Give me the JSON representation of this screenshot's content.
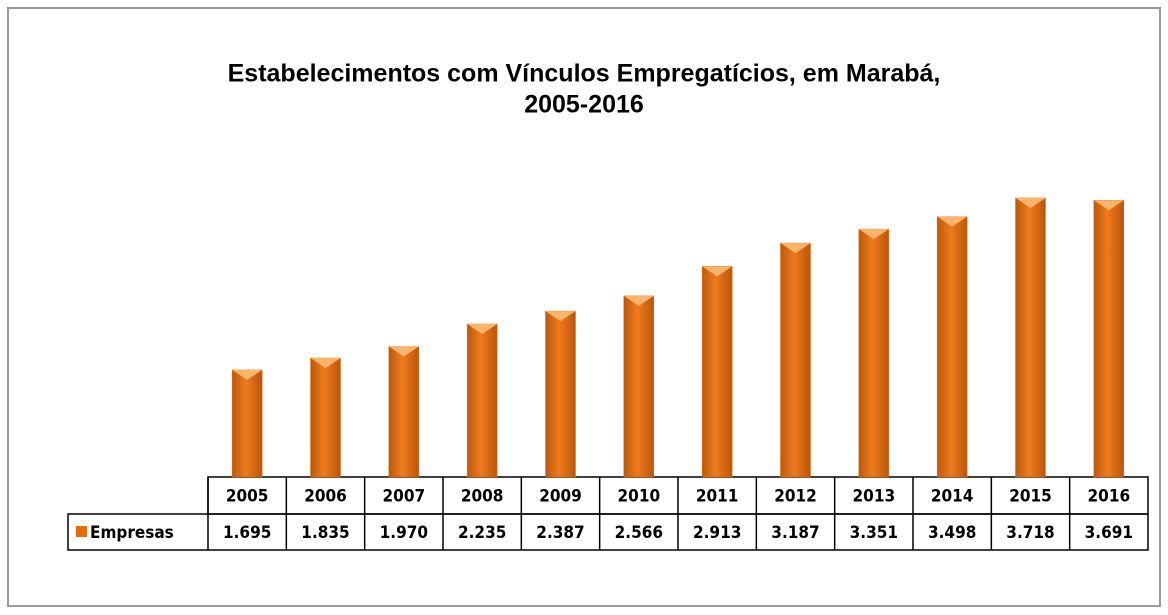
{
  "chart_data": {
    "type": "bar",
    "title": "Estabelecimentos com Vínculos Empregatícios, em Marabá,",
    "subtitle": "2005-2016",
    "categories": [
      "2005",
      "2006",
      "2007",
      "2008",
      "2009",
      "2010",
      "2011",
      "2012",
      "2013",
      "2014",
      "2015",
      "2016"
    ],
    "series": [
      {
        "name": "Empresas",
        "color": "#e46c0a",
        "values": [
          1695,
          1835,
          1970,
          2235,
          2387,
          2566,
          2913,
          3187,
          3351,
          3498,
          3718,
          3691
        ],
        "value_labels": [
          "1.695",
          "1.835",
          "1.970",
          "2.235",
          "2.387",
          "2.566",
          "2.913",
          "3.187",
          "3.351",
          "3.498",
          "3.718",
          "3.691"
        ]
      }
    ]
  }
}
